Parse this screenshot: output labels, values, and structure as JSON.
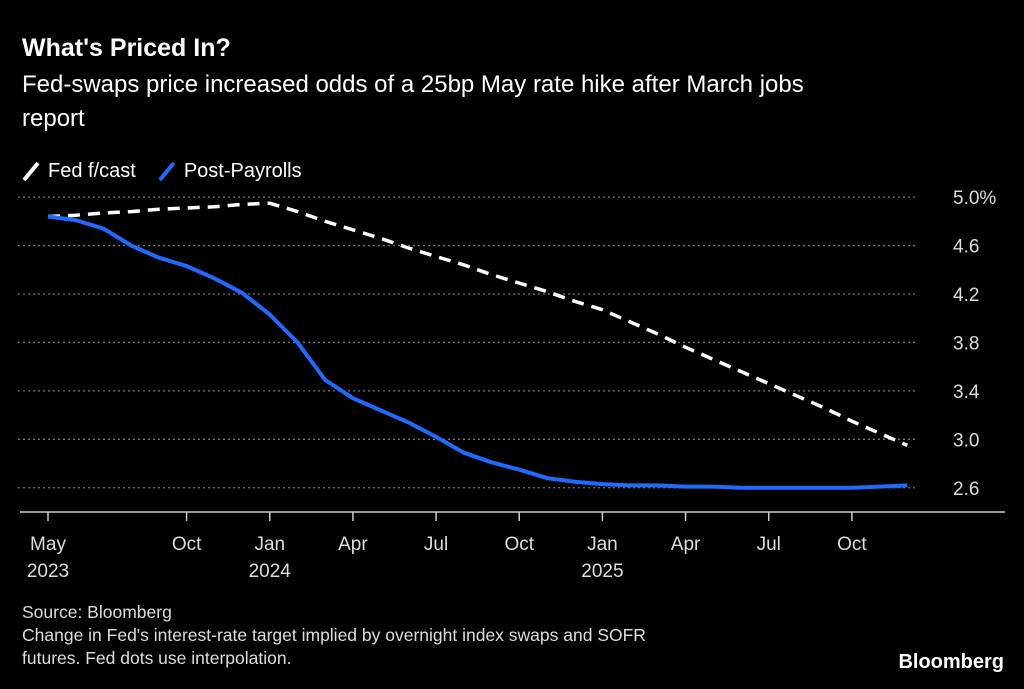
{
  "chart_data": {
    "type": "line",
    "title": "What's Priced In?",
    "subtitle": [
      "Fed-swaps price increased odds of a 25bp May rate hike after March jobs",
      "report"
    ],
    "source": "Source: Bloomberg",
    "notes": [
      "Change in Fed's interest-rate target implied by overnight index swaps and SOFR",
      "futures. Fed dots use interpolation."
    ],
    "brand": "Bloomberg",
    "x": [
      "2023-05",
      "2023-06",
      "2023-07",
      "2023-08",
      "2023-09",
      "2023-10",
      "2023-11",
      "2023-12",
      "2024-01",
      "2024-02",
      "2024-03",
      "2024-04",
      "2024-05",
      "2024-06",
      "2024-07",
      "2024-08",
      "2024-09",
      "2024-10",
      "2024-11",
      "2024-12",
      "2025-01",
      "2025-02",
      "2025-03",
      "2025-04",
      "2025-05",
      "2025-06",
      "2025-07",
      "2025-08",
      "2025-09",
      "2025-10",
      "2025-11",
      "2025-12"
    ],
    "series": [
      {
        "name": "Fed f/cast",
        "color": "#ffffff",
        "dashed": true,
        "values": [
          4.84,
          4.85,
          4.87,
          4.88,
          4.9,
          4.91,
          4.92,
          4.94,
          4.95,
          4.88,
          4.8,
          4.73,
          4.66,
          4.58,
          4.51,
          4.44,
          4.36,
          4.29,
          4.22,
          4.14,
          4.07,
          3.97,
          3.87,
          3.76,
          3.66,
          3.56,
          3.46,
          3.36,
          3.26,
          3.15,
          3.05,
          2.95
        ]
      },
      {
        "name": "Post-Payrolls",
        "color": "#1f6bff",
        "dashed": false,
        "values": [
          4.84,
          4.81,
          4.74,
          4.6,
          4.5,
          4.43,
          4.33,
          4.21,
          4.03,
          3.8,
          3.49,
          3.34,
          3.24,
          3.14,
          3.02,
          2.89,
          2.81,
          2.75,
          2.68,
          2.65,
          2.63,
          2.62,
          2.62,
          2.61,
          2.61,
          2.6,
          2.6,
          2.6,
          2.6,
          2.6,
          2.61,
          2.62
        ]
      }
    ],
    "ylim": [
      2.4,
      5.1
    ],
    "yticks": [
      {
        "value": 2.6,
        "label": "2.6"
      },
      {
        "value": 3.0,
        "label": "3.0"
      },
      {
        "value": 3.4,
        "label": "3.4"
      },
      {
        "value": 3.8,
        "label": "3.8"
      },
      {
        "value": 4.2,
        "label": "4.2"
      },
      {
        "value": 4.6,
        "label": "4.6"
      },
      {
        "value": 5.0,
        "label": "5.0%"
      }
    ],
    "xticks": [
      {
        "value": "2023-05",
        "label": "May",
        "year": "2023"
      },
      {
        "value": "2023-10",
        "label": "Oct"
      },
      {
        "value": "2024-01",
        "label": "Jan",
        "year": "2024"
      },
      {
        "value": "2024-04",
        "label": "Apr"
      },
      {
        "value": "2024-07",
        "label": "Jul"
      },
      {
        "value": "2024-10",
        "label": "Oct"
      },
      {
        "value": "2025-01",
        "label": "Jan",
        "year": "2025"
      },
      {
        "value": "2025-04",
        "label": "Apr"
      },
      {
        "value": "2025-07",
        "label": "Jul"
      },
      {
        "value": "2025-10",
        "label": "Oct"
      }
    ],
    "grid": true
  }
}
